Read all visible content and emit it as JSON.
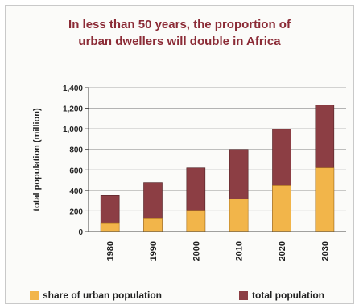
{
  "chart_data": {
    "type": "bar",
    "title_lines": [
      "In less than 50 years, the proportion of",
      "urban dwellers will double in Africa"
    ],
    "xlabel": "",
    "ylabel": "total population (million)",
    "categories": [
      "1980",
      "1990",
      "2000",
      "2010",
      "2020",
      "2030"
    ],
    "series": [
      {
        "name": "share of urban population",
        "values": [
          85,
          130,
          205,
          315,
          450,
          620
        ],
        "color": "#f2b54a"
      },
      {
        "name": "total population",
        "values": [
          350,
          480,
          620,
          800,
          995,
          1230
        ],
        "color": "#8c3e44"
      }
    ],
    "ylim": [
      0,
      1400
    ],
    "yticks": [
      "0",
      "200",
      "400",
      "600",
      "800",
      "1,000",
      "1,200",
      "1,400"
    ],
    "grid": true,
    "legend_position": "bottom"
  }
}
